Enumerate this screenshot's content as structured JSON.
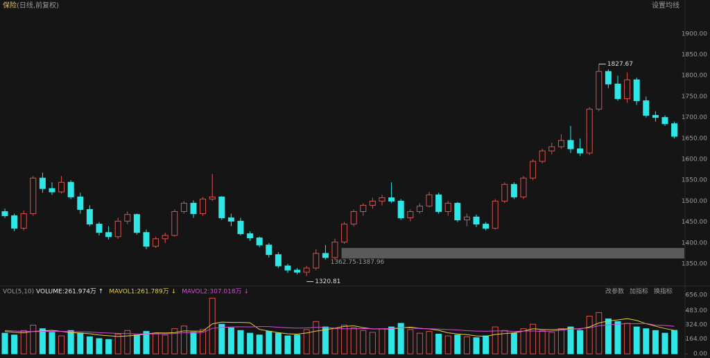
{
  "header": {
    "title": "保险",
    "subtitle": "(日线,前复权)",
    "settings": "设置均线"
  },
  "chart_data": [
    {
      "type": "candlestick",
      "up_color": "#e0504e",
      "down_color": "#2fe6e6",
      "ylim": [
        1302,
        1961
      ],
      "yticks": [
        {
          "value": 1350,
          "label": "1350.00"
        },
        {
          "value": 1400,
          "label": "1400.00"
        },
        {
          "value": 1450,
          "label": "1450.00"
        },
        {
          "value": 1500,
          "label": "1500.00"
        },
        {
          "value": 1550,
          "label": "1550.00"
        },
        {
          "value": 1600,
          "label": "1600.00"
        },
        {
          "value": 1650,
          "label": "1650.00"
        },
        {
          "value": 1700,
          "label": "1700.00"
        },
        {
          "value": 1750,
          "label": "1750.00"
        },
        {
          "value": 1800,
          "label": "1800.00"
        },
        {
          "value": 1850,
          "label": "1850.00"
        },
        {
          "value": 1900,
          "label": "1900.00"
        }
      ],
      "zone": {
        "low": 1362.75,
        "high": 1387.96,
        "label": "1362.75-1387.96"
      },
      "ohlc": [
        [
          1475,
          1482,
          1460,
          1465
        ],
        [
          1465,
          1470,
          1428,
          1435
        ],
        [
          1435,
          1478,
          1430,
          1470
        ],
        [
          1470,
          1560,
          1465,
          1555
        ],
        [
          1555,
          1568,
          1520,
          1530
        ],
        [
          1530,
          1545,
          1515,
          1522
        ],
        [
          1522,
          1560,
          1518,
          1545
        ],
        [
          1545,
          1550,
          1505,
          1510
        ],
        [
          1510,
          1520,
          1470,
          1480
        ],
        [
          1480,
          1490,
          1440,
          1445
        ],
        [
          1445,
          1450,
          1418,
          1425
        ],
        [
          1425,
          1440,
          1408,
          1415
        ],
        [
          1415,
          1460,
          1410,
          1452
        ],
        [
          1452,
          1475,
          1445,
          1468
        ],
        [
          1468,
          1470,
          1420,
          1425
        ],
        [
          1425,
          1432,
          1385,
          1392
        ],
        [
          1392,
          1415,
          1388,
          1410
        ],
        [
          1410,
          1425,
          1400,
          1418
        ],
        [
          1418,
          1480,
          1415,
          1475
        ],
        [
          1475,
          1500,
          1470,
          1495
        ],
        [
          1495,
          1502,
          1460,
          1470
        ],
        [
          1470,
          1510,
          1465,
          1505
        ],
        [
          1505,
          1565,
          1500,
          1510
        ],
        [
          1510,
          1512,
          1455,
          1460
        ],
        [
          1460,
          1470,
          1440,
          1452
        ],
        [
          1452,
          1460,
          1418,
          1422
        ],
        [
          1422,
          1428,
          1405,
          1412
        ],
        [
          1412,
          1415,
          1390,
          1395
        ],
        [
          1395,
          1400,
          1365,
          1372
        ],
        [
          1372,
          1378,
          1340,
          1345
        ],
        [
          1345,
          1350,
          1328,
          1335
        ],
        [
          1335,
          1340,
          1325,
          1330
        ],
        [
          1330,
          1345,
          1320.81,
          1340
        ],
        [
          1340,
          1385,
          1335,
          1375
        ],
        [
          1375,
          1395,
          1360,
          1365
        ],
        [
          1365,
          1410,
          1360,
          1402
        ],
        [
          1402,
          1450,
          1398,
          1445
        ],
        [
          1445,
          1480,
          1440,
          1475
        ],
        [
          1475,
          1495,
          1465,
          1490
        ],
        [
          1490,
          1508,
          1482,
          1500
        ],
        [
          1500,
          1515,
          1490,
          1508
        ],
        [
          1508,
          1545,
          1495,
          1500
        ],
        [
          1500,
          1505,
          1455,
          1460
        ],
        [
          1460,
          1480,
          1452,
          1475
        ],
        [
          1475,
          1495,
          1470,
          1488
        ],
        [
          1488,
          1522,
          1485,
          1515
        ],
        [
          1515,
          1520,
          1470,
          1475
        ],
        [
          1475,
          1500,
          1465,
          1495
        ],
        [
          1495,
          1498,
          1450,
          1455
        ],
        [
          1455,
          1470,
          1440,
          1462
        ],
        [
          1462,
          1468,
          1438,
          1445
        ],
        [
          1445,
          1450,
          1430,
          1435
        ],
        [
          1435,
          1505,
          1432,
          1500
        ],
        [
          1500,
          1545,
          1495,
          1540
        ],
        [
          1540,
          1545,
          1505,
          1510
        ],
        [
          1510,
          1560,
          1505,
          1555
        ],
        [
          1555,
          1600,
          1550,
          1595
        ],
        [
          1595,
          1625,
          1590,
          1620
        ],
        [
          1620,
          1640,
          1612,
          1630
        ],
        [
          1630,
          1660,
          1625,
          1645
        ],
        [
          1645,
          1680,
          1615,
          1625
        ],
        [
          1625,
          1650,
          1608,
          1615
        ],
        [
          1615,
          1725,
          1610,
          1720
        ],
        [
          1720,
          1827.67,
          1715,
          1810
        ],
        [
          1810,
          1815,
          1770,
          1780
        ],
        [
          1780,
          1800,
          1740,
          1745
        ],
        [
          1745,
          1808,
          1735,
          1790
        ],
        [
          1790,
          1795,
          1730,
          1740
        ],
        [
          1740,
          1750,
          1700,
          1705
        ],
        [
          1705,
          1715,
          1690,
          1700
        ],
        [
          1700,
          1705,
          1680,
          1685
        ],
        [
          1685,
          1690,
          1650,
          1655
        ]
      ]
    },
    {
      "type": "bar",
      "title": "VOL(5,10)",
      "legend": [
        {
          "label": "VOLUME:261.974万 ↑",
          "color": "#e8e8e8"
        },
        {
          "label": "MAVOL1:261.789万 ↓",
          "color": "#e8d040"
        },
        {
          "label": "MAVOL2:307.018万 ↓",
          "color": "#d84ad8"
        }
      ],
      "buttons": [
        "改参数",
        "加指标",
        "换指标"
      ],
      "ylim": [
        0,
        702
      ],
      "yticks": [
        {
          "value": 0,
          "label": "0.00"
        },
        {
          "value": 164,
          "label": "164.00"
        },
        {
          "value": 324,
          "label": "324.00"
        },
        {
          "value": 483,
          "label": "483.00"
        },
        {
          "value": 656,
          "label": "656.00"
        }
      ],
      "values": [
        230,
        210,
        260,
        320,
        280,
        240,
        200,
        260,
        230,
        190,
        170,
        160,
        220,
        260,
        210,
        250,
        230,
        210,
        280,
        310,
        240,
        270,
        620,
        330,
        290,
        260,
        230,
        210,
        250,
        230,
        200,
        210,
        270,
        360,
        300,
        280,
        320,
        290,
        260,
        240,
        280,
        300,
        340,
        270,
        230,
        250,
        220,
        200,
        210,
        190,
        180,
        200,
        300,
        260,
        230,
        280,
        330,
        260,
        240,
        280,
        300,
        260,
        420,
        460,
        390,
        360,
        340,
        300,
        280,
        260,
        230,
        261.974
      ],
      "series": [
        {
          "color": "#e8d040",
          "values": [
            250,
            240,
            235,
            250,
            256,
            262,
            250,
            236,
            232,
            224,
            210,
            202,
            194,
            200,
            208,
            220,
            234,
            232,
            236,
            256,
            254,
            252,
            334,
            354,
            350,
            350,
            346,
            272,
            254,
            236,
            224,
            220,
            232,
            254,
            268,
            286,
            306,
            312,
            292,
            278,
            278,
            276,
            288,
            298,
            284,
            278,
            262,
            234,
            222,
            214,
            200,
            196,
            216,
            226,
            234,
            254,
            280,
            272,
            268,
            274,
            282,
            276,
            300,
            344,
            366,
            378,
            392,
            372,
            336,
            308,
            282,
            261.789
          ]
        },
        {
          "color": "#d84ad8",
          "values": [
            260,
            255,
            250,
            248,
            250,
            252,
            250,
            248,
            246,
            243,
            236,
            232,
            228,
            226,
            222,
            222,
            222,
            224,
            226,
            236,
            232,
            238,
            284,
            294,
            300,
            302,
            300,
            304,
            304,
            296,
            290,
            286,
            288,
            296,
            292,
            286,
            280,
            280,
            282,
            280,
            280,
            282,
            292,
            288,
            282,
            280,
            276,
            270,
            266,
            258,
            254,
            252,
            256,
            256,
            250,
            254,
            256,
            250,
            254,
            262,
            276,
            282,
            290,
            312,
            322,
            330,
            338,
            336,
            338,
            320,
            316,
            307.018
          ]
        }
      ]
    }
  ]
}
